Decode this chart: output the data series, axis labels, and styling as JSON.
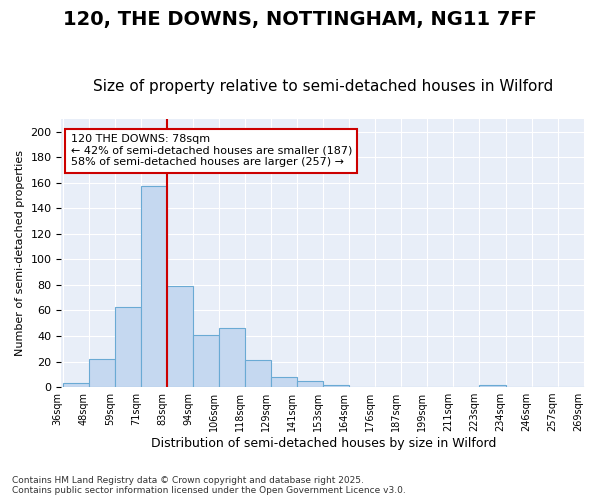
{
  "title": "120, THE DOWNS, NOTTINGHAM, NG11 7FF",
  "subtitle": "Size of property relative to semi-detached houses in Wilford",
  "xlabel": "Distribution of semi-detached houses by size in Wilford",
  "ylabel": "Number of semi-detached properties",
  "bar_values": [
    3,
    22,
    63,
    157,
    79,
    41,
    46,
    21,
    8,
    5,
    2,
    0,
    0,
    0,
    0,
    0,
    2,
    0,
    0,
    0
  ],
  "tick_labels": [
    "36sqm",
    "48sqm",
    "59sqm",
    "71sqm",
    "83sqm",
    "94sqm",
    "106sqm",
    "118sqm",
    "129sqm",
    "141sqm",
    "153sqm",
    "164sqm",
    "176sqm",
    "187sqm",
    "199sqm",
    "211sqm",
    "223sqm",
    "234sqm",
    "246sqm",
    "257sqm",
    "269sqm"
  ],
  "bar_color": "#c5d8f0",
  "bar_edge_color": "#6aaad4",
  "vline_color": "#cc0000",
  "annotation_text": "120 THE DOWNS: 78sqm\n← 42% of semi-detached houses are smaller (187)\n58% of semi-detached houses are larger (257) →",
  "annotation_box_color": "#cc0000",
  "ylim": [
    0,
    210
  ],
  "yticks": [
    0,
    20,
    40,
    60,
    80,
    100,
    120,
    140,
    160,
    180,
    200
  ],
  "plot_bg_color": "#e8eef8",
  "fig_bg_color": "#ffffff",
  "footer_text": "Contains HM Land Registry data © Crown copyright and database right 2025.\nContains public sector information licensed under the Open Government Licence v3.0.",
  "title_fontsize": 14,
  "subtitle_fontsize": 11,
  "n_bins": 20,
  "vline_bin": 4
}
